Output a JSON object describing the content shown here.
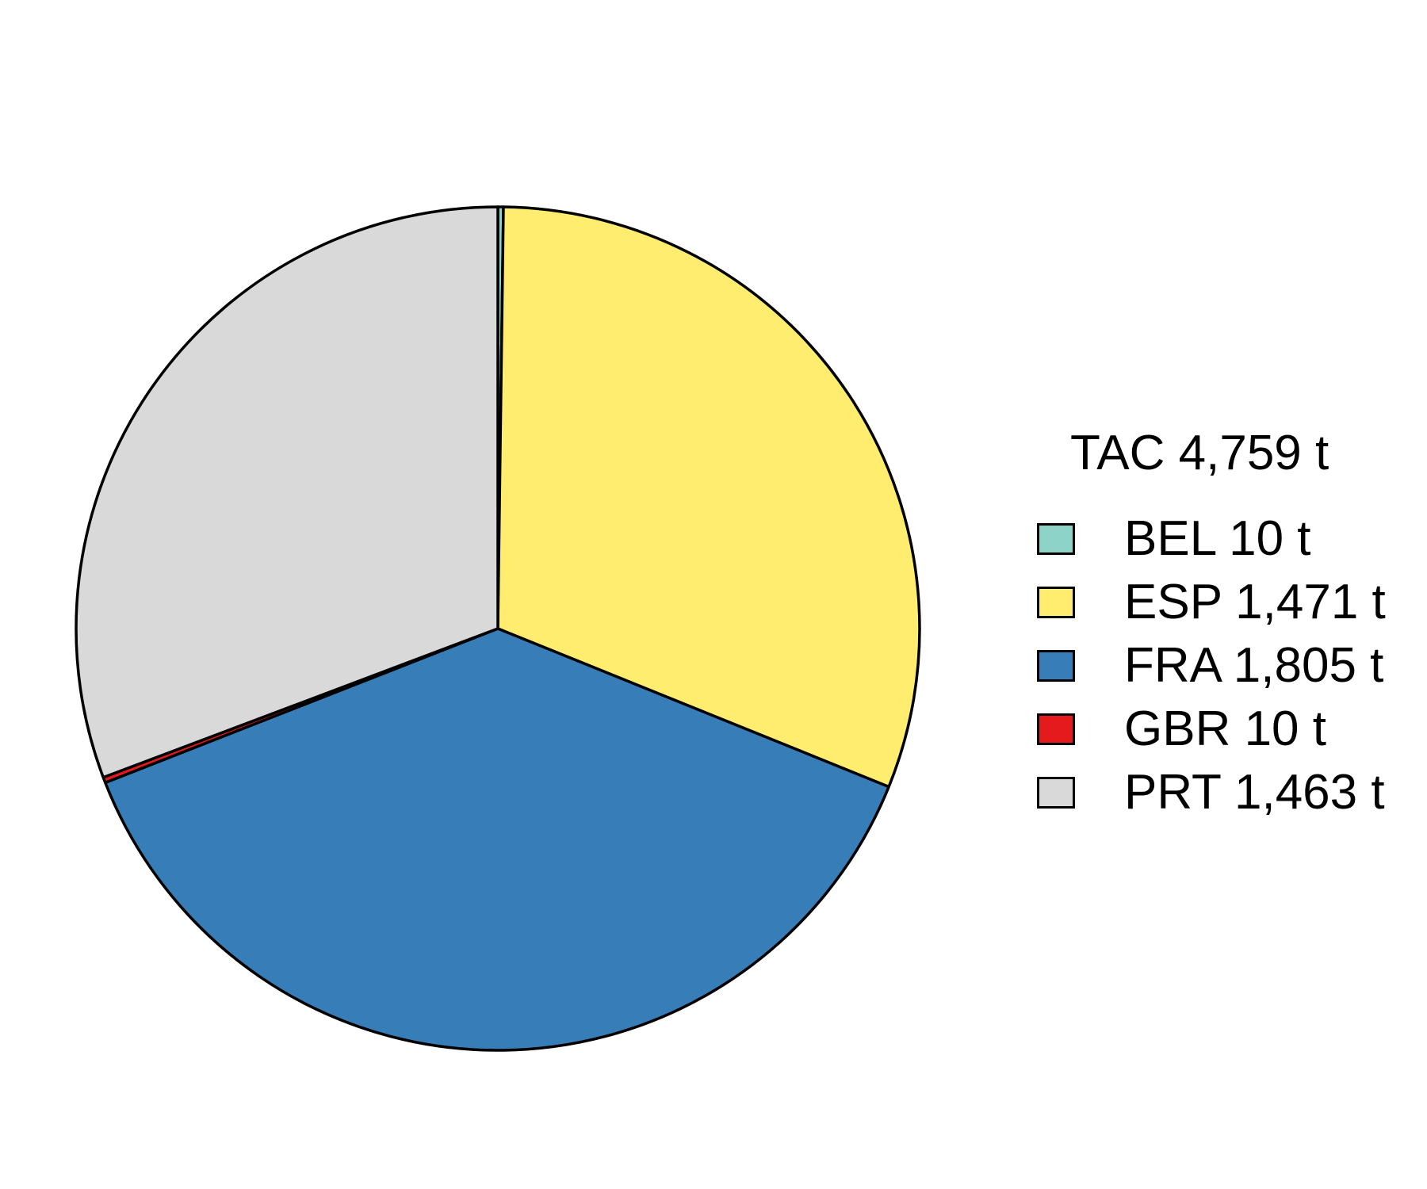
{
  "chart_data": {
    "type": "pie",
    "title": "",
    "legend_title": "TAC 4,759 t",
    "legend_position": "right",
    "start_angle_deg": 0,
    "direction": "clockwise",
    "slices": [
      {
        "name": "BEL 10 t",
        "value": 10,
        "color": "#8dd3c7"
      },
      {
        "name": "ESP 1,471 t",
        "value": 1471,
        "color": "#ffed6f"
      },
      {
        "name": "FRA 1,805 t",
        "value": 1805,
        "color": "#377eb8"
      },
      {
        "name": "GBR 10 t",
        "value": 10,
        "color": "#e41a1c"
      },
      {
        "name": "PRT 1,463 t",
        "value": 1463,
        "color": "#d9d9d9"
      }
    ]
  }
}
